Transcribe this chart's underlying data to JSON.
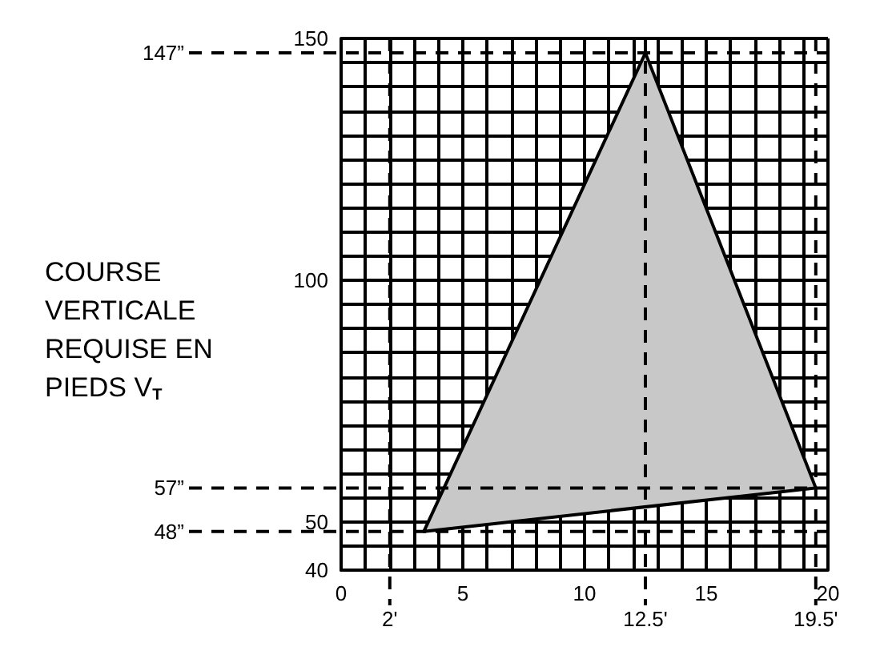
{
  "chart_data": {
    "type": "area",
    "ylabel": "COURSE VERTICALE REQUISE EN PIEDS V$_{T}$",
    "series": [
      {
        "color": "#c8c8c8",
        "x": [
          3.4,
          12.5,
          19.5,
          3.4
        ],
        "values": [
          48,
          147,
          57,
          48
        ]
      }
    ],
    "xlim": [
      0,
      20
    ],
    "ylim": [
      40,
      150
    ],
    "xticks": [
      0,
      {
        "value": 1,
        "label": null
      },
      {
        "value": 2,
        "label": null
      },
      {
        "value": 3,
        "label": null
      },
      {
        "value": 4,
        "label": null
      },
      5,
      {
        "value": 6,
        "label": null
      },
      {
        "value": 7,
        "label": null
      },
      {
        "value": 8,
        "label": null
      },
      {
        "value": 9,
        "label": null
      },
      10,
      {
        "value": 11,
        "label": null
      },
      {
        "value": 12,
        "label": null
      },
      {
        "value": 13,
        "label": null
      },
      {
        "value": 14,
        "label": null
      },
      15,
      {
        "value": 16,
        "label": null
      },
      {
        "value": 17,
        "label": null
      },
      {
        "value": 18,
        "label": null
      },
      {
        "value": 19,
        "label": null
      },
      20
    ],
    "yticks": [
      40,
      {
        "value": 45,
        "label": null
      },
      50,
      {
        "value": 55,
        "label": null
      },
      {
        "value": 60,
        "label": null
      },
      {
        "value": 65,
        "label": null
      },
      {
        "value": 70,
        "label": null
      },
      {
        "value": 75,
        "label": null
      },
      {
        "value": 80,
        "label": null
      },
      {
        "value": 85,
        "label": null
      },
      {
        "value": 90,
        "label": null
      },
      {
        "value": 95,
        "label": null
      },
      100,
      {
        "value": 105,
        "label": null
      },
      {
        "value": 110,
        "label": null
      },
      {
        "value": 115,
        "label": null
      },
      {
        "value": 120,
        "label": null
      },
      {
        "value": 125,
        "label": null
      },
      {
        "value": 130,
        "label": null
      },
      {
        "value": 135,
        "label": null
      },
      {
        "value": 140,
        "label": null
      },
      {
        "value": 145,
        "label": null
      },
      150
    ],
    "grid": true,
    "ref_lines": [
      {
        "axis": "y",
        "value": 147,
        "label": "147”",
        "line_style": "dashed",
        "color": "#000000"
      },
      {
        "axis": "y",
        "value": 57,
        "label": "57”",
        "line_style": "dashed",
        "color": "#000000"
      },
      {
        "axis": "y",
        "value": 48,
        "label": "48”",
        "line_style": "dashed",
        "color": "#000000"
      },
      {
        "axis": "x",
        "value": 2,
        "label": "2'",
        "line_style": "dashed",
        "color": "#000000"
      },
      {
        "axis": "x",
        "value": 12.5,
        "label": "12.5'",
        "line_style": "dashed",
        "color": "#000000"
      },
      {
        "axis": "x",
        "value": 19.5,
        "label": "19.5'",
        "line_style": "dashed",
        "color": "#000000"
      }
    ]
  }
}
